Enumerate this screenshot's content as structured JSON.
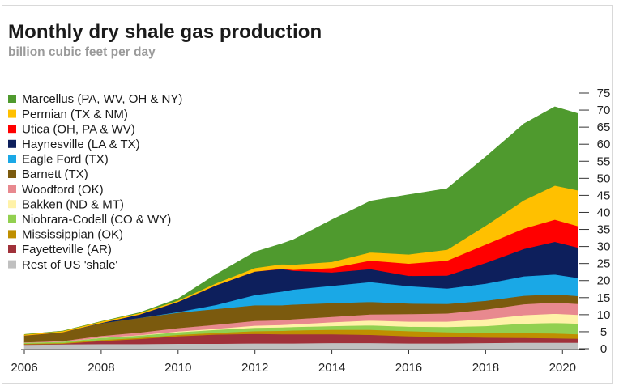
{
  "title": "Monthly dry shale gas production",
  "subtitle": "billion cubic feet per day",
  "chart_data": {
    "type": "area",
    "stacked": true,
    "title": "Monthly dry shale gas production",
    "subtitle": "billion cubic feet per day",
    "xlabel": "",
    "ylabel": "",
    "xlim": [
      2006,
      2020.5
    ],
    "ylim": [
      0,
      75
    ],
    "x_ticks": [
      "2006",
      "2008",
      "2010",
      "2012",
      "2014",
      "2016",
      "2018",
      "2020"
    ],
    "y_ticks": [
      "0",
      "5",
      "10",
      "15",
      "20",
      "25",
      "30",
      "35",
      "40",
      "45",
      "50",
      "55",
      "60",
      "65",
      "70",
      "75"
    ],
    "y_axis_side": "right",
    "legend_position": "top-left",
    "grid": false,
    "x": [
      2006,
      2007,
      2008,
      2009,
      2010,
      2011,
      2012,
      2012.7,
      2013,
      2014,
      2015,
      2016,
      2017,
      2018,
      2019,
      2019.8,
      2020.4
    ],
    "series": [
      {
        "name": "Rest of US 'shale'",
        "color": "#c0c0c0",
        "values": [
          1.2,
          1.3,
          1.4,
          1.4,
          1.5,
          1.5,
          1.6,
          1.6,
          1.6,
          1.7,
          1.7,
          1.6,
          1.6,
          1.7,
          1.8,
          1.8,
          1.8
        ]
      },
      {
        "name": "Fayetteville (AR)",
        "color": "#a0313a",
        "values": [
          0.1,
          0.2,
          0.9,
          1.5,
          2.2,
          2.7,
          2.8,
          2.7,
          2.7,
          2.6,
          2.4,
          2.1,
          1.9,
          1.6,
          1.4,
          1.3,
          1.2
        ]
      },
      {
        "name": "Mississippian (OK)",
        "color": "#bf8f00",
        "values": [
          0.2,
          0.2,
          0.3,
          0.3,
          0.4,
          0.5,
          0.8,
          1.0,
          1.1,
          1.3,
          1.5,
          1.5,
          1.4,
          1.4,
          1.4,
          1.4,
          1.3
        ]
      },
      {
        "name": "Niobrara-Codell (CO & WY)",
        "color": "#92d050",
        "values": [
          0.3,
          0.4,
          0.6,
          0.7,
          0.8,
          0.9,
          1.0,
          1.0,
          1.0,
          1.1,
          1.3,
          1.3,
          1.5,
          2.0,
          2.8,
          3.1,
          3.1
        ]
      },
      {
        "name": "Bakken (ND & MT)",
        "color": "#fff2a8",
        "values": [
          0.0,
          0.0,
          0.1,
          0.1,
          0.2,
          0.3,
          0.6,
          0.7,
          0.8,
          1.1,
          1.4,
          1.5,
          1.6,
          2.0,
          2.5,
          2.7,
          2.6
        ]
      },
      {
        "name": "Woodford (OK)",
        "color": "#e8898f",
        "values": [
          0.1,
          0.2,
          0.5,
          0.8,
          1.0,
          1.2,
          1.4,
          1.4,
          1.5,
          1.6,
          1.8,
          2.2,
          2.4,
          2.8,
          3.2,
          3.3,
          3.2
        ]
      },
      {
        "name": "Barnett (TX)",
        "color": "#7b5a0e",
        "values": [
          2.0,
          2.6,
          3.7,
          4.3,
          4.5,
          4.6,
          4.6,
          4.4,
          4.3,
          4.0,
          3.7,
          3.1,
          2.8,
          2.6,
          2.5,
          2.4,
          2.3
        ]
      },
      {
        "name": "Eagle Ford (TX)",
        "color": "#1aa8e6",
        "values": [
          0.0,
          0.0,
          0.0,
          0.0,
          0.2,
          1.2,
          3.0,
          4.0,
          4.4,
          5.1,
          5.8,
          5.1,
          4.5,
          5.0,
          5.7,
          5.8,
          5.3
        ]
      },
      {
        "name": "Haynesville (LA & TX)",
        "color": "#0d1f5c",
        "values": [
          0.0,
          0.0,
          0.1,
          1.0,
          3.0,
          5.8,
          6.9,
          6.6,
          5.5,
          3.9,
          3.8,
          3.0,
          3.8,
          6.1,
          8.0,
          9.6,
          8.9
        ]
      },
      {
        "name": "Utica (OH, PA & WV)",
        "color": "#ff0000",
        "values": [
          0.0,
          0.0,
          0.0,
          0.0,
          0.0,
          0.0,
          0.0,
          0.1,
          0.3,
          1.3,
          2.5,
          3.6,
          4.4,
          5.4,
          6.0,
          6.5,
          6.3
        ]
      },
      {
        "name": "Permian (TX & NM)",
        "color": "#ffc000",
        "values": [
          0.3,
          0.3,
          0.4,
          0.4,
          0.4,
          0.6,
          1.0,
          1.3,
          1.5,
          1.8,
          2.4,
          2.7,
          3.2,
          5.5,
          8.3,
          10.0,
          10.5
        ]
      },
      {
        "name": "Marcellus (PA, WV, OH & NY)",
        "color": "#4f9a2e",
        "values": [
          0.0,
          0.0,
          0.0,
          0.1,
          0.5,
          2.6,
          4.7,
          6.0,
          7.3,
          12.3,
          15.0,
          17.5,
          17.9,
          20.2,
          22.4,
          23.1,
          22.5
        ]
      }
    ]
  }
}
